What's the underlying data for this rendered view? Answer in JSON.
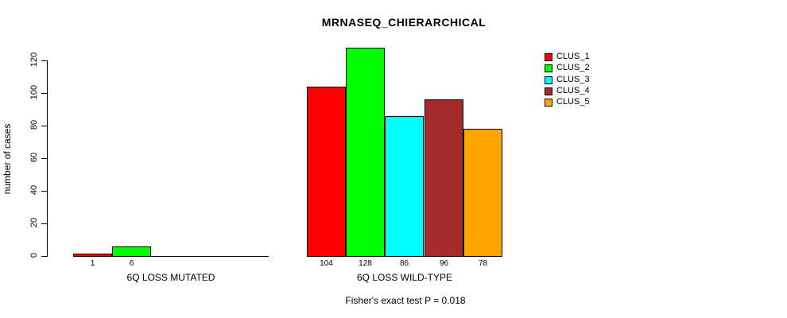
{
  "title": "MRNASEQ_CHIERARCHICAL",
  "footnote": "Fisher's exact test P = 0.018",
  "chart_data": {
    "type": "bar",
    "title": "MRNASEQ_CHIERARCHICAL",
    "ylabel": "number of cases",
    "xlabel": "",
    "ylim": [
      0,
      130
    ],
    "yticks": [
      0,
      20,
      40,
      60,
      80,
      100,
      120
    ],
    "grid": false,
    "legend_position": "top-right",
    "categories": [
      "6Q LOSS MUTATED",
      "6Q LOSS WILD-TYPE"
    ],
    "series": [
      {
        "name": "CLUS_1",
        "color": "#FF0000",
        "values": [
          1,
          104
        ]
      },
      {
        "name": "CLUS_2",
        "color": "#00FF00",
        "values": [
          6,
          128
        ]
      },
      {
        "name": "CLUS_3",
        "color": "#00FFFF",
        "values": [
          0,
          86
        ]
      },
      {
        "name": "CLUS_4",
        "color": "#A52A2A",
        "values": [
          0,
          96
        ]
      },
      {
        "name": "CLUS_5",
        "color": "#FFA500",
        "values": [
          0,
          78
        ]
      }
    ],
    "bar_value_labels_shown": true,
    "zero_value_labels_hidden": true,
    "footnote": "Fisher's exact test P = 0.018"
  }
}
